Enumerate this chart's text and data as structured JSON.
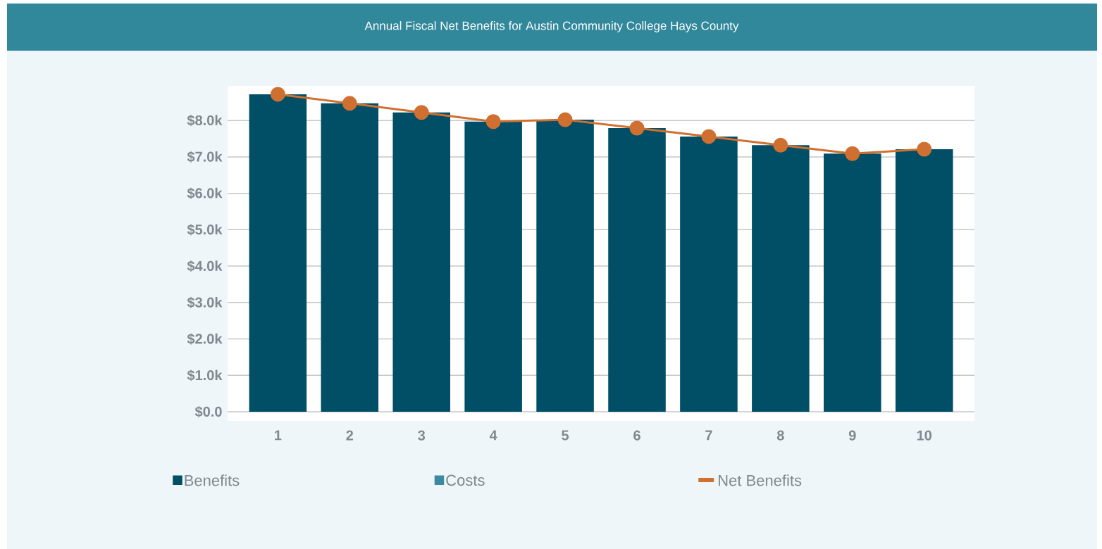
{
  "chart_data": {
    "type": "bar",
    "title": "Annual Fiscal Net Benefits for Austin Community College Hays County",
    "categories": [
      "1",
      "2",
      "3",
      "4",
      "5",
      "6",
      "7",
      "8",
      "9",
      "10"
    ],
    "series": [
      {
        "name": "Benefits",
        "color": "#004f66",
        "values": [
          8720,
          8470,
          8220,
          7970,
          8020,
          7790,
          7560,
          7320,
          7090,
          7210
        ]
      },
      {
        "name": "Costs",
        "color": "#3b8aa0",
        "values": [
          0,
          0,
          0,
          0,
          0,
          0,
          0,
          0,
          0,
          0
        ]
      },
      {
        "name": "Net Benefits",
        "type": "line",
        "color": "#d07030",
        "marker": "circle",
        "values": [
          8720,
          8470,
          8220,
          7970,
          8020,
          7790,
          7560,
          7320,
          7090,
          7210
        ]
      }
    ],
    "stacked": true,
    "ylim": [
      -250,
      8950
    ],
    "yticks": [
      {
        "value": 0,
        "label": "$0.0"
      },
      {
        "value": 1000,
        "label": "$1.0k"
      },
      {
        "value": 2000,
        "label": "$2.0k"
      },
      {
        "value": 3000,
        "label": "$3.0k"
      },
      {
        "value": 4000,
        "label": "$4.0k"
      },
      {
        "value": 5000,
        "label": "$5.0k"
      },
      {
        "value": 6000,
        "label": "$6.0k"
      },
      {
        "value": 7000,
        "label": "$7.0k"
      },
      {
        "value": 8000,
        "label": "$8.0k"
      }
    ],
    "grid": "y",
    "legend": "bottom"
  }
}
